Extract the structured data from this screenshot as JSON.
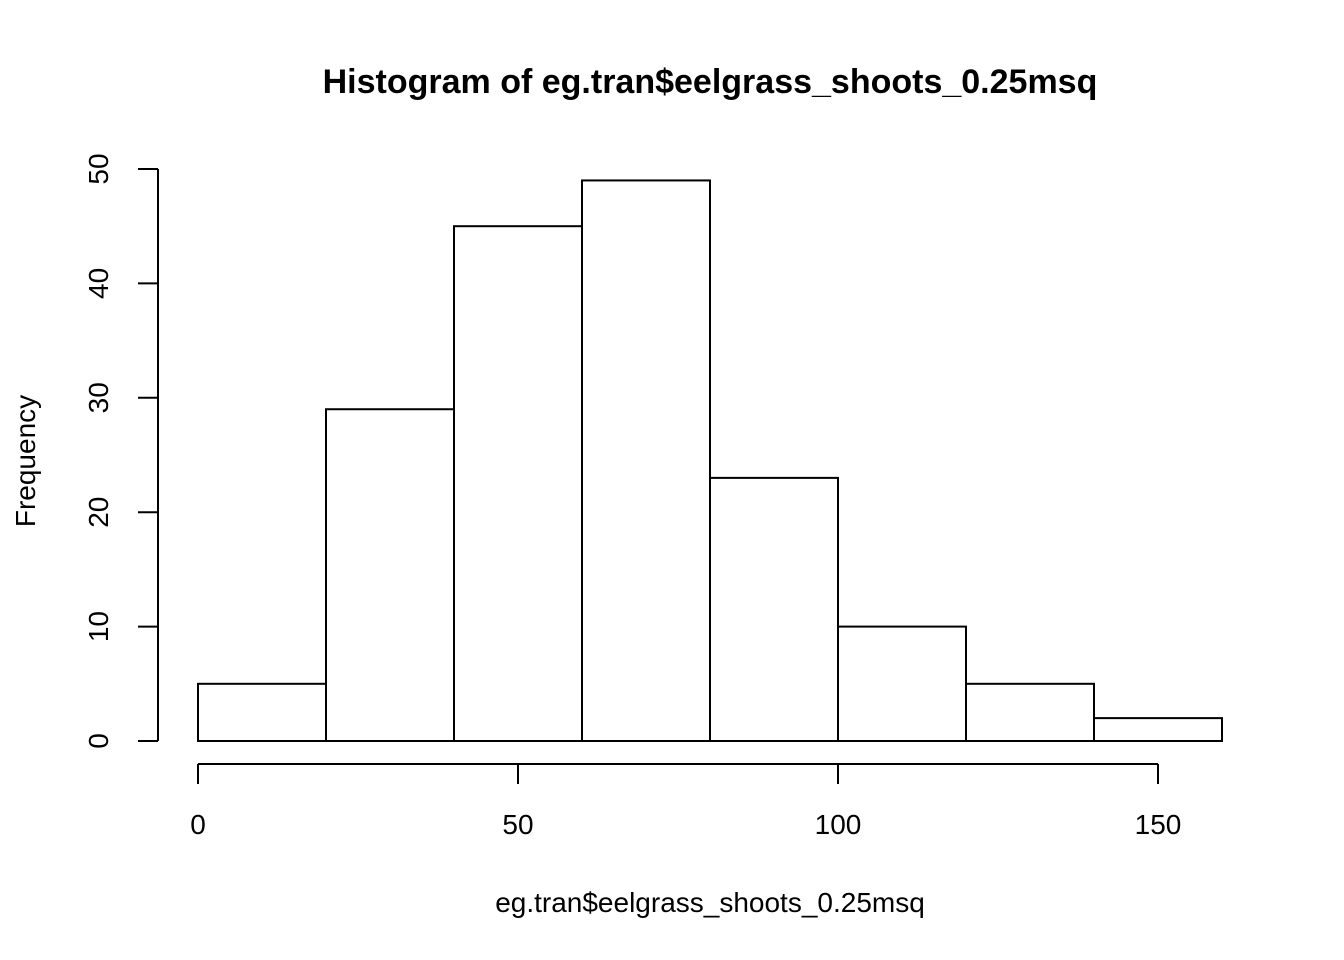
{
  "chart_data": {
    "type": "bar",
    "title": "Histogram of eg.tran$eelgrass_shoots_0.25msq",
    "xlabel": "eg.tran$eelgrass_shoots_0.25msq",
    "ylabel": "Frequency",
    "bins": [
      {
        "start": 0,
        "end": 20,
        "count": 5
      },
      {
        "start": 20,
        "end": 40,
        "count": 29
      },
      {
        "start": 40,
        "end": 60,
        "count": 45
      },
      {
        "start": 60,
        "end": 80,
        "count": 49
      },
      {
        "start": 80,
        "end": 100,
        "count": 23
      },
      {
        "start": 100,
        "end": 120,
        "count": 10
      },
      {
        "start": 120,
        "end": 140,
        "count": 5
      },
      {
        "start": 140,
        "end": 160,
        "count": 2
      }
    ],
    "xlim": [
      0,
      160
    ],
    "ylim": [
      0,
      50
    ],
    "x_ticks": [
      0,
      50,
      100,
      150
    ],
    "y_ticks": [
      0,
      10,
      20,
      30,
      40,
      50
    ],
    "grid": false,
    "colors": {
      "bar_fill": "#ffffff",
      "bar_stroke": "#000000"
    }
  }
}
